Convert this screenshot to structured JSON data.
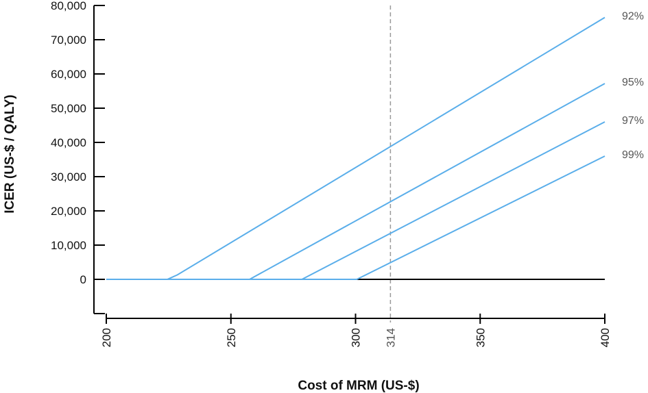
{
  "chart_data": {
    "type": "line",
    "xlabel": "Cost of MRM (US-$)",
    "ylabel": "ICER (US-$ / QALY)",
    "xlim": [
      200,
      400
    ],
    "ylim": [
      -10000,
      80000
    ],
    "x_ticks": [
      {
        "value": 200,
        "label": "200"
      },
      {
        "value": 250,
        "label": "250"
      },
      {
        "value": 300,
        "label": "300"
      },
      {
        "value": 350,
        "label": "350"
      },
      {
        "value": 400,
        "label": "400"
      }
    ],
    "y_ticks": [
      {
        "value": -10000,
        "label": ""
      },
      {
        "value": 0,
        "label": "0"
      },
      {
        "value": 10000,
        "label": "10,000"
      },
      {
        "value": 20000,
        "label": "20,000"
      },
      {
        "value": 30000,
        "label": "30,000"
      },
      {
        "value": 40000,
        "label": "40,000"
      },
      {
        "value": 50000,
        "label": "50,000"
      },
      {
        "value": 60000,
        "label": "60,000"
      },
      {
        "value": 70000,
        "label": "70,000"
      },
      {
        "value": 80000,
        "label": "80,000"
      }
    ],
    "reference_line": {
      "x": 314,
      "label": "314",
      "style": "dashed",
      "color": "#999999"
    },
    "zero_line": {
      "y": 0,
      "color": "#000000"
    },
    "grid": false,
    "legend": "none",
    "series_color": "#5aaeea",
    "series": [
      {
        "name": "92%",
        "x": [
          200,
          224.5,
          228.5,
          400
        ],
        "y": [
          0,
          0,
          1300,
          76500
        ]
      },
      {
        "name": "95%",
        "x": [
          200,
          257.5,
          400
        ],
        "y": [
          0,
          0,
          57200
        ]
      },
      {
        "name": "97%",
        "x": [
          200,
          278.5,
          400
        ],
        "y": [
          0,
          0,
          46000
        ]
      },
      {
        "name": "99%",
        "x": [
          200,
          300.5,
          400
        ],
        "y": [
          0,
          0,
          36000
        ]
      }
    ]
  }
}
